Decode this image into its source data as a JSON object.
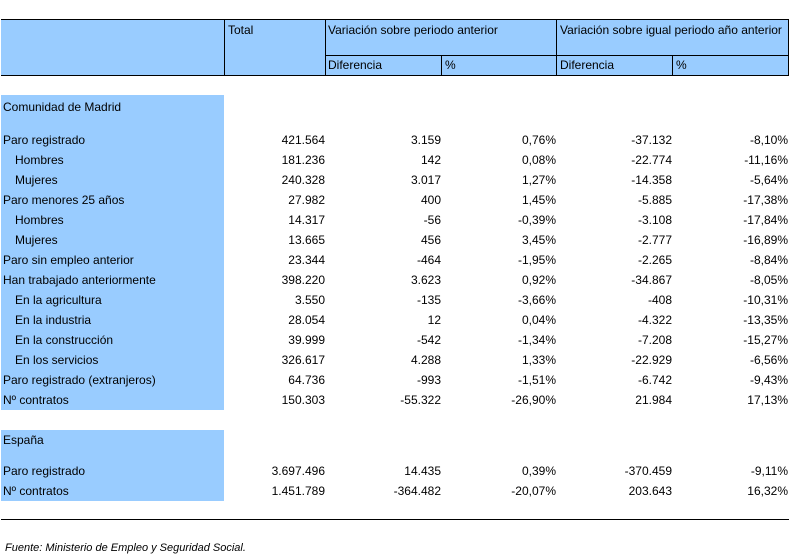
{
  "header": {
    "total": "Total",
    "group1": "Variación sobre periodo anterior",
    "group2": "Variación sobre igual periodo año anterior",
    "diff": "Diferencia",
    "pct": "%"
  },
  "sections": [
    {
      "title": "Comunidad de Madrid",
      "rows": [
        {
          "label": "Paro registrado",
          "indent": false,
          "total": "421.564",
          "d1": "3.159",
          "p1": "0,76%",
          "d2": "-37.132",
          "p2": "-8,10%"
        },
        {
          "label": "Hombres",
          "indent": true,
          "total": "181.236",
          "d1": "142",
          "p1": "0,08%",
          "d2": "-22.774",
          "p2": "-11,16%"
        },
        {
          "label": "Mujeres",
          "indent": true,
          "total": "240.328",
          "d1": "3.017",
          "p1": "1,27%",
          "d2": "-14.358",
          "p2": "-5,64%"
        },
        {
          "label": "Paro menores 25 años",
          "indent": false,
          "total": "27.982",
          "d1": "400",
          "p1": "1,45%",
          "d2": "-5.885",
          "p2": "-17,38%"
        },
        {
          "label": "Hombres",
          "indent": true,
          "total": "14.317",
          "d1": "-56",
          "p1": "-0,39%",
          "d2": "-3.108",
          "p2": "-17,84%"
        },
        {
          "label": "Mujeres",
          "indent": true,
          "total": "13.665",
          "d1": "456",
          "p1": "3,45%",
          "d2": "-2.777",
          "p2": "-16,89%"
        },
        {
          "label": "Paro sin empleo anterior",
          "indent": false,
          "total": "23.344",
          "d1": "-464",
          "p1": "-1,95%",
          "d2": "-2.265",
          "p2": "-8,84%"
        },
        {
          "label": "Han trabajado anteriormente",
          "indent": false,
          "total": "398.220",
          "d1": "3.623",
          "p1": "0,92%",
          "d2": "-34.867",
          "p2": "-8,05%"
        },
        {
          "label": "En la agricultura",
          "indent": true,
          "total": "3.550",
          "d1": "-135",
          "p1": "-3,66%",
          "d2": "-408",
          "p2": "-10,31%"
        },
        {
          "label": "En la industria",
          "indent": true,
          "total": "28.054",
          "d1": "12",
          "p1": "0,04%",
          "d2": "-4.322",
          "p2": "-13,35%"
        },
        {
          "label": "En la construcción",
          "indent": true,
          "total": "39.999",
          "d1": "-542",
          "p1": "-1,34%",
          "d2": "-7.208",
          "p2": "-15,27%"
        },
        {
          "label": "En los servicios",
          "indent": true,
          "total": "326.617",
          "d1": "4.288",
          "p1": "1,33%",
          "d2": "-22.929",
          "p2": "-6,56%"
        },
        {
          "label": "Paro registrado (extranjeros)",
          "indent": false,
          "total": "64.736",
          "d1": "-993",
          "p1": "-1,51%",
          "d2": "-6.742",
          "p2": "-9,43%"
        },
        {
          "label": "Nº contratos",
          "indent": false,
          "total": "150.303",
          "d1": "-55.322",
          "p1": "-26,90%",
          "d2": "21.984",
          "p2": "17,13%"
        }
      ]
    },
    {
      "title": "España",
      "rows": [
        {
          "label": "Paro registrado",
          "indent": false,
          "total": "3.697.496",
          "d1": "14.435",
          "p1": "0,39%",
          "d2": "-370.459",
          "p2": "-9,11%"
        },
        {
          "label": "Nº contratos",
          "indent": false,
          "total": "1.451.789",
          "d1": "-364.482",
          "p1": "-20,07%",
          "d2": "203.643",
          "p2": "16,32%"
        }
      ]
    }
  ],
  "source": "Fuente: Ministerio de Empleo y Seguridad Social.",
  "colors": {
    "header_fill": "#99ccff",
    "text": "#000000",
    "rule": "#000000"
  }
}
